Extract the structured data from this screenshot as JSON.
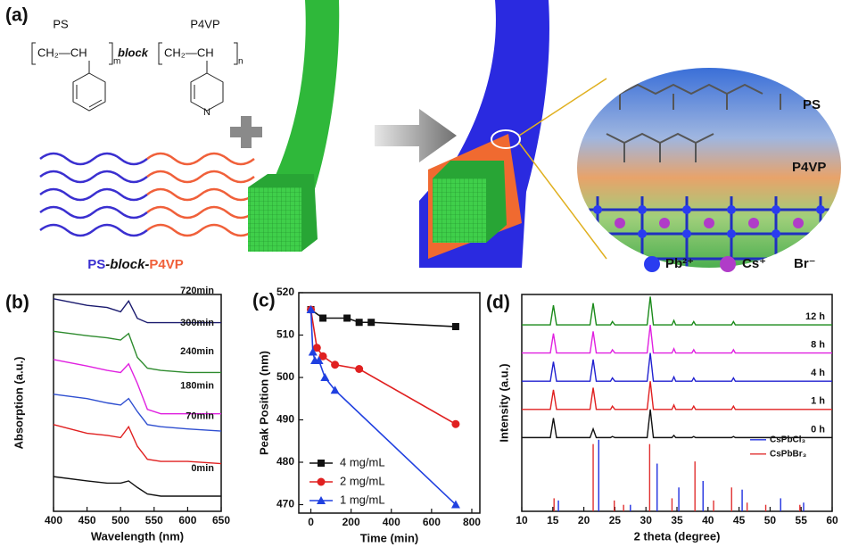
{
  "panel_a": {
    "label": "(a)",
    "ps": "PS",
    "p4vp": "P4VP",
    "formula_left": "CH₂—CH",
    "sub_m": "m",
    "block": "block",
    "formula_right": "CH₂—CH",
    "sub_n": "n",
    "nitrogen": "N",
    "caption": [
      "PS",
      "-block-",
      "P4VP"
    ],
    "zoom_ps": "PS",
    "zoom_p4vp": "P4VP",
    "ions": [
      "Pb²⁺",
      "Cs⁺",
      "Br⁻"
    ]
  },
  "chart_data": [
    {
      "type": "line",
      "panel_label": "(b)",
      "xlabel": "Wavelength (nm)",
      "ylabel": "Absorption (a.u.)",
      "x": [
        400,
        450,
        480,
        500,
        512,
        525,
        540,
        560,
        600,
        650
      ],
      "xlim": [
        400,
        650
      ],
      "xticks": [
        400,
        450,
        500,
        550,
        600,
        650
      ],
      "ylim": [
        0,
        1
      ],
      "series": [
        {
          "name": "720min",
          "color": "#1a1a6e",
          "values": [
            0.98,
            0.95,
            0.94,
            0.92,
            0.97,
            0.89,
            0.87,
            0.87,
            0.87,
            0.87
          ]
        },
        {
          "name": "300min",
          "color": "#2e8b2e",
          "values": [
            0.83,
            0.81,
            0.8,
            0.79,
            0.82,
            0.71,
            0.66,
            0.65,
            0.64,
            0.64
          ]
        },
        {
          "name": "240min",
          "color": "#e020e0",
          "values": [
            0.7,
            0.67,
            0.65,
            0.64,
            0.68,
            0.59,
            0.47,
            0.45,
            0.45,
            0.45
          ]
        },
        {
          "name": "180min",
          "color": "#2f4fd0",
          "values": [
            0.54,
            0.52,
            0.5,
            0.49,
            0.52,
            0.46,
            0.4,
            0.39,
            0.38,
            0.37
          ]
        },
        {
          "name": "70min",
          "color": "#e02020",
          "values": [
            0.4,
            0.36,
            0.35,
            0.34,
            0.39,
            0.3,
            0.24,
            0.23,
            0.23,
            0.22
          ]
        },
        {
          "name": "0min",
          "color": "#111111",
          "values": [
            0.16,
            0.14,
            0.13,
            0.13,
            0.14,
            0.11,
            0.08,
            0.07,
            0.07,
            0.07
          ]
        }
      ]
    },
    {
      "type": "line",
      "panel_label": "(c)",
      "xlabel": "Time (min)",
      "ylabel": "Peak Position (nm)",
      "xlim": [
        -60,
        840
      ],
      "xticks": [
        0,
        200,
        400,
        600,
        800
      ],
      "ylim": [
        468,
        520
      ],
      "yticks": [
        470,
        480,
        490,
        500,
        510,
        520
      ],
      "legend": "lower left",
      "series": [
        {
          "name": "4 mg/mL",
          "color": "#111111",
          "marker": "square",
          "x": [
            0,
            60,
            180,
            240,
            300,
            720
          ],
          "values": [
            516,
            514,
            514,
            513,
            513,
            512
          ]
        },
        {
          "name": "2 mg/mL",
          "color": "#e02020",
          "marker": "circle",
          "x": [
            0,
            30,
            60,
            120,
            240,
            720
          ],
          "values": [
            516,
            507,
            505,
            503,
            502,
            489
          ]
        },
        {
          "name": "1 mg/mL",
          "color": "#2040e0",
          "marker": "triangle",
          "x": [
            0,
            10,
            20,
            40,
            70,
            120,
            720
          ],
          "values": [
            516,
            506,
            504,
            504,
            500,
            497,
            470
          ]
        }
      ]
    },
    {
      "type": "line",
      "panel_label": "(d)",
      "xlabel": "2 theta (degree)",
      "ylabel": "Intensity (a.u.)",
      "x": [
        10,
        14.6,
        15.1,
        15.6,
        21,
        21.5,
        22,
        24.3,
        24.6,
        25,
        30.2,
        30.7,
        31.2,
        34.2,
        34.5,
        34.8,
        37.4,
        37.7,
        38,
        43.8,
        44.1,
        44.4,
        60
      ],
      "xlim": [
        10,
        60
      ],
      "xticks": [
        10,
        15,
        20,
        25,
        30,
        35,
        40,
        45,
        50,
        55,
        60
      ],
      "ylim": [
        0,
        1
      ],
      "series": [
        {
          "name": "12 h",
          "color": "#1a8a1a",
          "values": [
            0.86,
            0.86,
            0.95,
            0.86,
            0.86,
            0.96,
            0.86,
            0.86,
            0.875,
            0.86,
            0.86,
            0.99,
            0.86,
            0.86,
            0.88,
            0.86,
            0.86,
            0.875,
            0.86,
            0.86,
            0.875,
            0.86,
            0.86
          ]
        },
        {
          "name": "8 h",
          "color": "#e020e0",
          "values": [
            0.73,
            0.73,
            0.82,
            0.73,
            0.73,
            0.83,
            0.73,
            0.73,
            0.745,
            0.73,
            0.73,
            0.86,
            0.73,
            0.73,
            0.75,
            0.73,
            0.73,
            0.745,
            0.73,
            0.73,
            0.745,
            0.73,
            0.73
          ]
        },
        {
          "name": "4 h",
          "color": "#2020d0",
          "values": [
            0.6,
            0.6,
            0.69,
            0.6,
            0.6,
            0.7,
            0.6,
            0.6,
            0.615,
            0.6,
            0.6,
            0.73,
            0.6,
            0.6,
            0.62,
            0.6,
            0.6,
            0.615,
            0.6,
            0.6,
            0.615,
            0.6,
            0.6
          ]
        },
        {
          "name": "1 h",
          "color": "#e02020",
          "values": [
            0.47,
            0.47,
            0.56,
            0.47,
            0.47,
            0.57,
            0.47,
            0.47,
            0.485,
            0.47,
            0.47,
            0.6,
            0.47,
            0.47,
            0.49,
            0.47,
            0.47,
            0.485,
            0.47,
            0.47,
            0.485,
            0.47,
            0.47
          ]
        },
        {
          "name": "0 h",
          "color": "#111111",
          "values": [
            0.34,
            0.34,
            0.43,
            0.34,
            0.34,
            0.38,
            0.34,
            0.34,
            0.345,
            0.34,
            0.34,
            0.47,
            0.34,
            0.34,
            0.35,
            0.34,
            0.34,
            0.345,
            0.34,
            0.34,
            0.345,
            0.34,
            0.34
          ]
        }
      ],
      "reference_legend": "upper right",
      "reference_series": [
        {
          "name": "CsPbCl₃",
          "color": "#2030e0",
          "x": [
            15.9,
            22.4,
            27.5,
            31.8,
            35.3,
            39.2,
            45.5,
            51.7,
            55.4
          ],
          "values": [
            0.05,
            0.33,
            0.03,
            0.22,
            0.11,
            0.14,
            0.1,
            0.06,
            0.04
          ]
        },
        {
          "name": "CsPbBr₃",
          "color": "#e03030",
          "x": [
            15.2,
            21.5,
            24.9,
            26.4,
            30.6,
            34.2,
            37.9,
            40.9,
            43.8,
            46.3,
            49.3,
            54.8
          ],
          "values": [
            0.06,
            0.31,
            0.05,
            0.03,
            0.31,
            0.06,
            0.23,
            0.05,
            0.11,
            0.04,
            0.03,
            0.03
          ]
        }
      ]
    }
  ]
}
